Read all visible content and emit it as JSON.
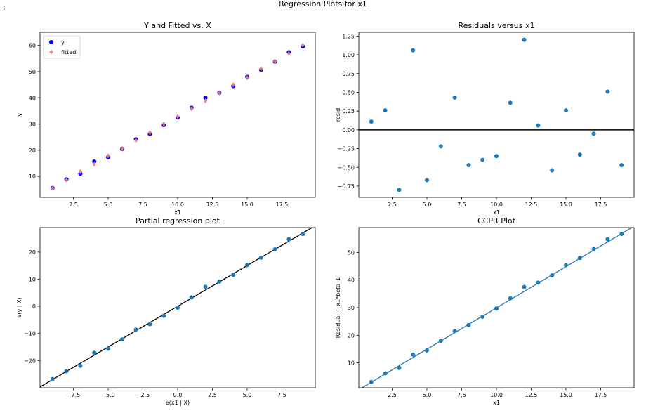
{
  "suptitle": "Regression Plots for x1",
  "corner_mark": ":",
  "colors": {
    "blue": "#0000ff",
    "fitted": "#f08080",
    "steel": "#1f77b4",
    "line": "#000000"
  },
  "chart_data": [
    {
      "type": "scatter",
      "title": "Y and Fitted vs. X",
      "xlabel": "x1",
      "ylabel": "y",
      "xlim": [
        0.1,
        19.9
      ],
      "ylim": [
        2,
        65
      ],
      "xticks": [
        2.5,
        5.0,
        7.5,
        10.0,
        12.5,
        15.0,
        17.5
      ],
      "xtick_labels": [
        "2.5",
        "5.0",
        "7.5",
        "10.0",
        "12.5",
        "15.0",
        "17.5"
      ],
      "yticks": [
        10,
        20,
        30,
        40,
        50,
        60
      ],
      "ytick_labels": [
        "10",
        "20",
        "30",
        "40",
        "50",
        "60"
      ],
      "legend": {
        "placement": "top-left",
        "entries": [
          "y",
          "fitted"
        ]
      },
      "series": [
        {
          "name": "y",
          "marker": "circle",
          "x": [
            1,
            2,
            3,
            4,
            5,
            6,
            7,
            8,
            9,
            10,
            11,
            12,
            13,
            14,
            15,
            16,
            17,
            18,
            19
          ],
          "y": [
            5.6,
            8.9,
            11.0,
            15.7,
            17.3,
            20.5,
            24.2,
            26.2,
            29.6,
            32.5,
            36.2,
            40.0,
            41.9,
            44.5,
            48.0,
            50.7,
            53.8,
            57.4,
            59.6
          ]
        },
        {
          "name": "fitted",
          "marker": "diamond",
          "x": [
            1,
            2,
            3,
            4,
            5,
            6,
            7,
            8,
            9,
            10,
            11,
            12,
            13,
            14,
            15,
            16,
            17,
            18,
            19
          ],
          "y": [
            5.5,
            8.6,
            11.8,
            14.6,
            17.9,
            20.7,
            23.8,
            26.7,
            30.0,
            32.9,
            35.8,
            38.8,
            41.8,
            45.0,
            47.7,
            51.0,
            53.9,
            56.9,
            60.1
          ]
        }
      ]
    },
    {
      "type": "scatter",
      "title": "Residuals versus x1",
      "xlabel": "x1",
      "ylabel": "resid",
      "xlim": [
        0.1,
        19.9
      ],
      "ylim": [
        -0.9,
        1.3
      ],
      "xticks": [
        2.5,
        5.0,
        7.5,
        10.0,
        12.5,
        15.0,
        17.5
      ],
      "xtick_labels": [
        "2.5",
        "5.0",
        "7.5",
        "10.0",
        "12.5",
        "15.0",
        "17.5"
      ],
      "yticks": [
        -0.75,
        -0.5,
        -0.25,
        0.0,
        0.25,
        0.5,
        0.75,
        1.0,
        1.25
      ],
      "ytick_labels": [
        "−0.75",
        "−0.50",
        "−0.25",
        "0.00",
        "0.25",
        "0.50",
        "0.75",
        "1.00",
        "1.25"
      ],
      "hline": 0,
      "series": [
        {
          "x": [
            1,
            2,
            3,
            4,
            5,
            6,
            7,
            8,
            9,
            10,
            11,
            12,
            13,
            14,
            15,
            16,
            17,
            18,
            19
          ],
          "y": [
            0.11,
            0.26,
            -0.8,
            1.06,
            -0.67,
            -0.22,
            0.43,
            -0.47,
            -0.4,
            -0.35,
            0.36,
            1.2,
            0.06,
            -0.54,
            0.26,
            -0.33,
            -0.05,
            0.51,
            -0.47
          ]
        }
      ]
    },
    {
      "type": "scatter",
      "title": "Partial regression plot",
      "xlabel": "e(x1 | X)",
      "ylabel": "e(y | X)",
      "xlim": [
        -9.9,
        9.9
      ],
      "ylim": [
        -30,
        29
      ],
      "xticks": [
        -7.5,
        -5.0,
        -2.5,
        0.0,
        2.5,
        5.0,
        7.5
      ],
      "xtick_labels": [
        "−7.5",
        "−5.0",
        "−2.5",
        "0.0",
        "2.5",
        "5.0",
        "7.5"
      ],
      "yticks": [
        -20,
        -10,
        0,
        10,
        20
      ],
      "ytick_labels": [
        "−20",
        "−10",
        "0",
        "10",
        "20"
      ],
      "fit_line": {
        "slope": 3.0,
        "intercept": 0
      },
      "series": [
        {
          "x": [
            -9,
            -8,
            -7,
            -6,
            -5,
            -4,
            -3,
            -2,
            -1,
            0,
            1,
            2,
            3,
            4,
            5,
            6,
            7,
            8,
            9
          ],
          "y": [
            -26.8,
            -23.9,
            -21.9,
            -17.1,
            -15.6,
            -12.2,
            -8.6,
            -6.6,
            -3.5,
            -0.5,
            3.3,
            7.2,
            9.1,
            11.6,
            15.2,
            17.9,
            21.0,
            24.7,
            26.6
          ]
        }
      ]
    },
    {
      "type": "scatter",
      "title": "CCPR Plot",
      "xlabel": "x1",
      "ylabel": "Residual + x1*beta_1",
      "xlim": [
        0.1,
        19.9
      ],
      "ylim": [
        1,
        59
      ],
      "xticks": [
        2.5,
        5.0,
        7.5,
        10.0,
        12.5,
        15.0,
        17.5
      ],
      "xtick_labels": [
        "2.5",
        "5.0",
        "7.5",
        "10.0",
        "12.5",
        "15.0",
        "17.5"
      ],
      "yticks": [
        10,
        20,
        30,
        40,
        50
      ],
      "ytick_labels": [
        "10",
        "20",
        "30",
        "40",
        "50"
      ],
      "fit_line": {
        "slope": 2.99,
        "intercept": 0
      },
      "series": [
        {
          "x": [
            1,
            2,
            3,
            4,
            5,
            6,
            7,
            8,
            9,
            10,
            11,
            12,
            13,
            14,
            15,
            16,
            17,
            18,
            19
          ],
          "y": [
            3.1,
            6.2,
            8.2,
            13.0,
            14.5,
            18.0,
            21.5,
            23.7,
            26.7,
            29.7,
            33.4,
            37.5,
            39.1,
            41.7,
            45.4,
            48.0,
            51.2,
            54.8,
            56.7
          ]
        }
      ]
    }
  ]
}
